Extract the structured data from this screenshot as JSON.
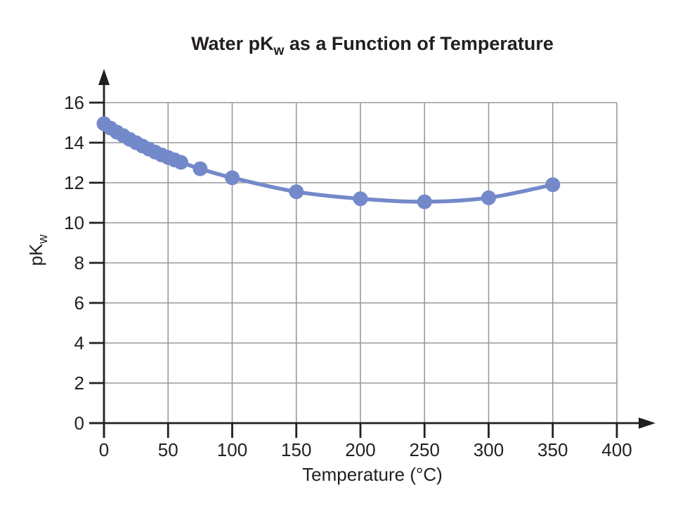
{
  "chart_data": {
    "type": "line",
    "title": {
      "pre": "Water pK",
      "sub": "w",
      "post": " as a Function of Temperature"
    },
    "xlabel": "Temperature (°C)",
    "ylabel": {
      "pre": "pK",
      "sub": "w"
    },
    "x": [
      0,
      5,
      10,
      15,
      20,
      25,
      30,
      35,
      40,
      45,
      50,
      55,
      60,
      75,
      100,
      150,
      200,
      250,
      300,
      350
    ],
    "y": [
      14.95,
      14.73,
      14.53,
      14.35,
      14.17,
      14.0,
      13.83,
      13.68,
      13.53,
      13.39,
      13.26,
      13.14,
      13.02,
      12.7,
      12.25,
      11.55,
      11.2,
      11.05,
      11.25,
      11.9
    ],
    "xlim": [
      0,
      400
    ],
    "ylim": [
      0,
      16
    ],
    "x_ticks": [
      0,
      50,
      100,
      150,
      200,
      250,
      300,
      350,
      400
    ],
    "y_ticks": [
      0,
      2,
      4,
      6,
      8,
      10,
      12,
      14,
      16
    ],
    "grid": true,
    "legend": "none",
    "colors": {
      "series": "#7389c9",
      "grid": "#999999",
      "axis": "#231f20",
      "text": "#231f20",
      "background": "#ffffff"
    },
    "marker_radius": 10.5
  }
}
